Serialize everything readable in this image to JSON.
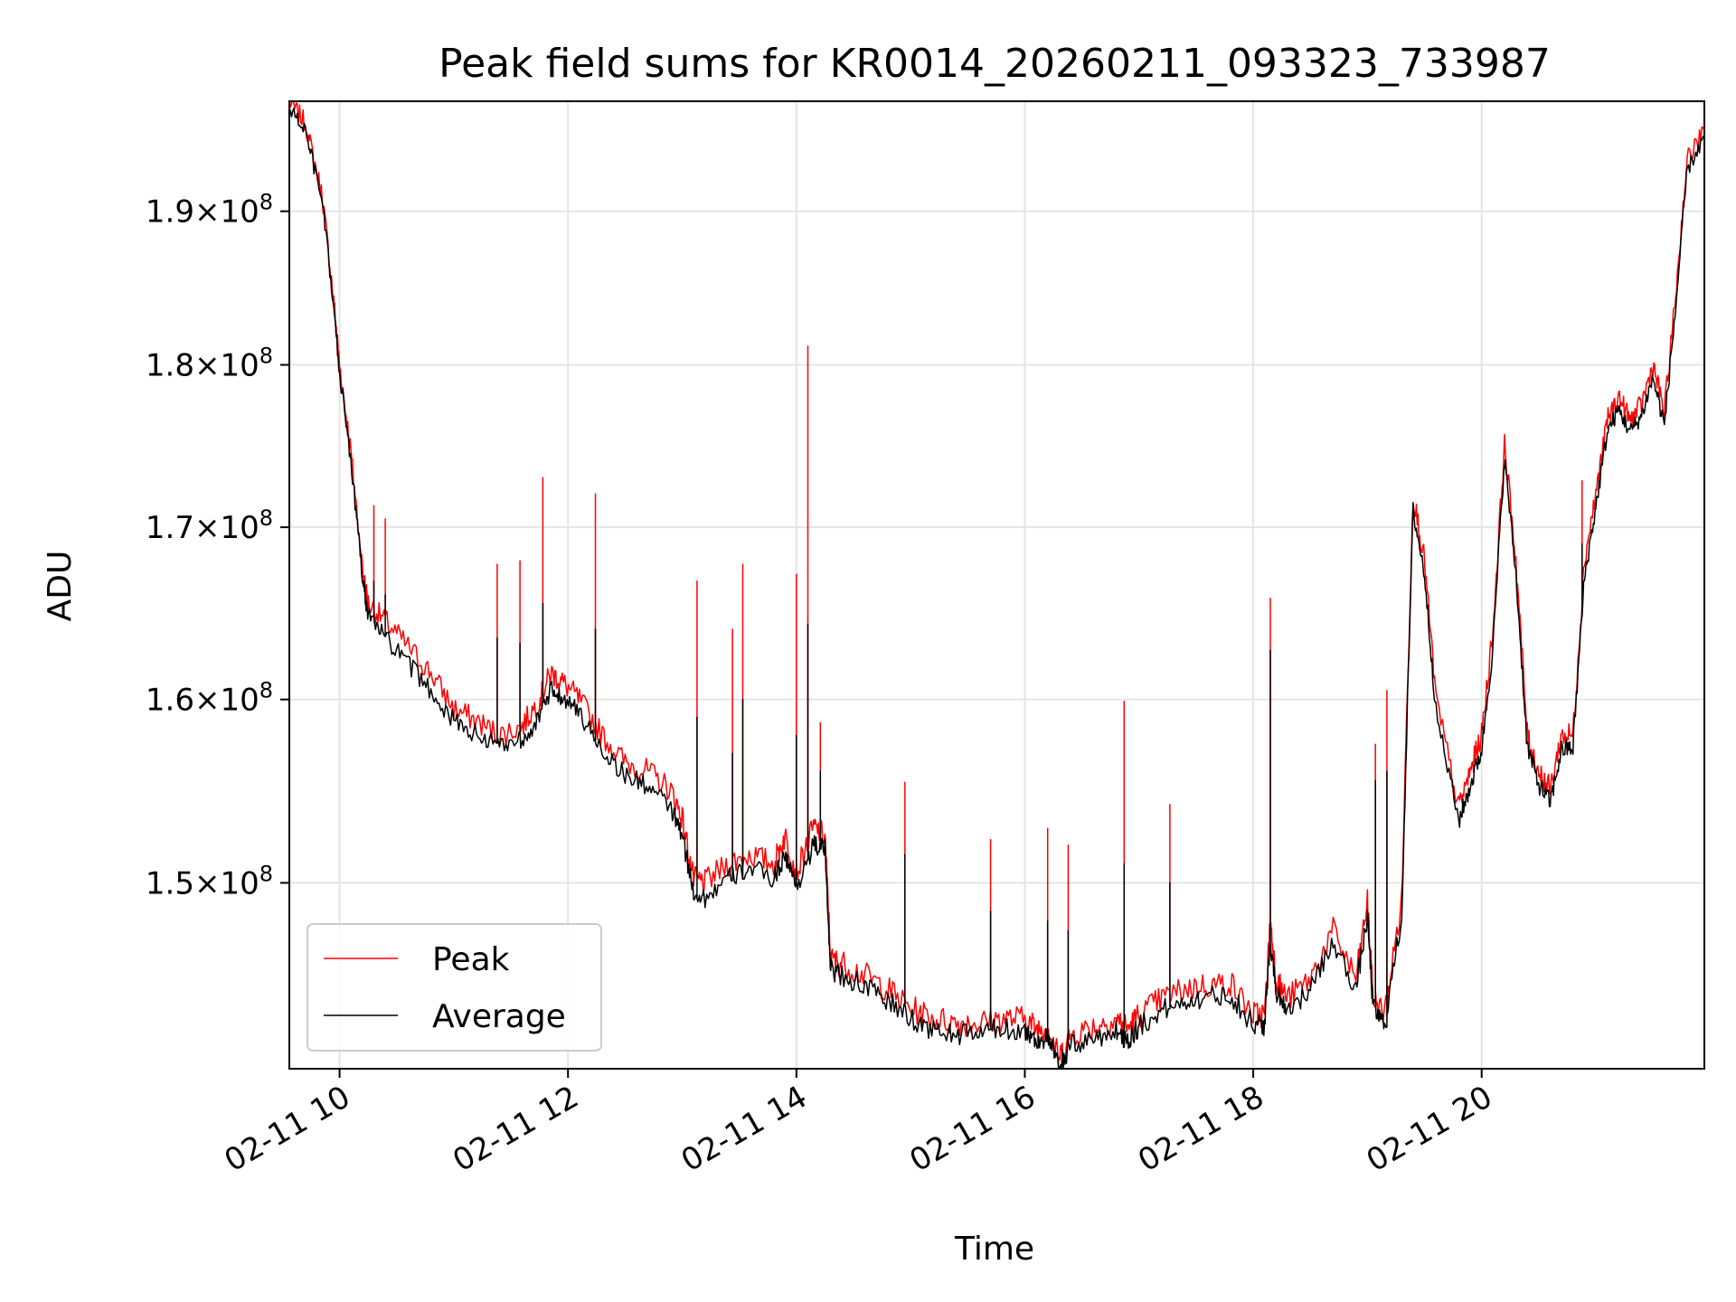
{
  "chart_data": {
    "type": "line",
    "title": "Peak field sums for KR0014_20260211_093323_733987",
    "xlabel": "Time",
    "ylabel": "ADU",
    "x_unit": "hours since 2026-02-11 00:00",
    "xlim": [
      9.56,
      21.95
    ],
    "ylim": [
      140.5,
      197.5
    ],
    "y_scale_note": "values in units of 1e6 ADU; log y-axis",
    "grid": true,
    "legend_position": "lower-left",
    "x_ticks": [
      {
        "value": 10,
        "label": "02-11 10"
      },
      {
        "value": 12,
        "label": "02-11 12"
      },
      {
        "value": 14,
        "label": "02-11 14"
      },
      {
        "value": 16,
        "label": "02-11 16"
      },
      {
        "value": 18,
        "label": "02-11 18"
      },
      {
        "value": 20,
        "label": "02-11 20"
      }
    ],
    "y_ticks": [
      {
        "value": 150,
        "mantissa": "1.5",
        "exponent": "8"
      },
      {
        "value": 160,
        "mantissa": "1.6",
        "exponent": "8"
      },
      {
        "value": 170,
        "mantissa": "1.7",
        "exponent": "8"
      },
      {
        "value": 180,
        "mantissa": "1.8",
        "exponent": "8"
      },
      {
        "value": 190,
        "mantissa": "1.9",
        "exponent": "8"
      }
    ],
    "tick_times_sign": "×",
    "tick_base": "10",
    "series": [
      {
        "name": "Peak",
        "color": "#ff0000",
        "x": [
          9.56,
          9.7,
          9.85,
          9.95,
          10.0,
          10.1,
          10.2,
          10.25,
          10.4,
          10.6,
          10.8,
          11.0,
          11.2,
          11.4,
          11.6,
          11.75,
          11.85,
          11.95,
          12.1,
          12.3,
          12.5,
          12.7,
          12.9,
          13.0,
          13.1,
          13.2,
          13.4,
          13.6,
          13.8,
          13.9,
          14.0,
          14.15,
          14.25,
          14.3,
          14.4,
          14.6,
          14.8,
          15.0,
          15.2,
          15.4,
          15.6,
          15.8,
          16.0,
          16.1,
          16.2,
          16.3,
          16.4,
          16.6,
          16.8,
          16.9,
          17.0,
          17.2,
          17.4,
          17.6,
          17.8,
          18.0,
          18.1,
          18.15,
          18.2,
          18.3,
          18.5,
          18.7,
          18.9,
          19.0,
          19.05,
          19.15,
          19.3,
          19.4,
          19.5,
          19.6,
          19.8,
          19.9,
          20.0,
          20.1,
          20.2,
          20.3,
          20.4,
          20.5,
          20.6,
          20.7,
          20.8,
          20.9,
          21.0,
          21.1,
          21.2,
          21.3,
          21.4,
          21.5,
          21.6,
          21.7,
          21.8,
          21.95
        ],
        "y": [
          197.5,
          196.0,
          191.0,
          184.0,
          180.0,
          174.5,
          167.5,
          165.5,
          164.5,
          163.0,
          161.5,
          159.5,
          158.8,
          158.0,
          158.5,
          160.0,
          161.5,
          161.0,
          160.0,
          158.0,
          156.5,
          156.0,
          155.0,
          153.5,
          150.2,
          150.0,
          151.0,
          151.5,
          151.0,
          152.5,
          150.5,
          153.0,
          152.5,
          146.0,
          145.8,
          145.2,
          144.5,
          143.5,
          143.0,
          142.8,
          142.8,
          143.0,
          143.0,
          142.5,
          142.6,
          141.0,
          142.2,
          142.6,
          143.0,
          142.5,
          143.2,
          144.0,
          144.5,
          144.7,
          144.8,
          143.2,
          143.2,
          148.0,
          145.0,
          144.0,
          145.0,
          147.5,
          145.0,
          149.0,
          144.0,
          143.2,
          149.0,
          172.0,
          168.0,
          160.0,
          154.0,
          156.0,
          158.0,
          164.0,
          175.0,
          168.0,
          158.0,
          156.0,
          155.0,
          158.0,
          158.0,
          168.0,
          172.0,
          176.5,
          178.0,
          176.5,
          177.5,
          180.0,
          177.0,
          184.5,
          193.5,
          195.5
        ]
      },
      {
        "name": "Average",
        "color": "#000000",
        "x": [
          9.56,
          9.7,
          9.85,
          9.95,
          10.0,
          10.1,
          10.2,
          10.25,
          10.4,
          10.6,
          10.8,
          11.0,
          11.2,
          11.4,
          11.6,
          11.75,
          11.85,
          11.95,
          12.1,
          12.3,
          12.5,
          12.7,
          12.9,
          13.0,
          13.1,
          13.2,
          13.4,
          13.6,
          13.8,
          13.9,
          14.0,
          14.15,
          14.25,
          14.3,
          14.4,
          14.6,
          14.8,
          15.0,
          15.2,
          15.4,
          15.6,
          15.8,
          16.0,
          16.1,
          16.2,
          16.3,
          16.4,
          16.6,
          16.8,
          16.9,
          17.0,
          17.2,
          17.4,
          17.6,
          17.8,
          18.0,
          18.1,
          18.15,
          18.2,
          18.3,
          18.5,
          18.7,
          18.9,
          19.0,
          19.05,
          19.15,
          19.3,
          19.4,
          19.5,
          19.6,
          19.8,
          19.9,
          20.0,
          20.1,
          20.2,
          20.3,
          20.4,
          20.5,
          20.6,
          20.7,
          20.8,
          20.9,
          21.0,
          21.1,
          21.2,
          21.3,
          21.4,
          21.5,
          21.6,
          21.7,
          21.8,
          21.95
        ],
        "y": [
          197.0,
          195.5,
          190.5,
          183.5,
          179.5,
          174.0,
          167.0,
          164.8,
          163.5,
          162.0,
          160.5,
          158.8,
          158.0,
          157.5,
          157.8,
          159.0,
          160.5,
          160.2,
          159.2,
          157.2,
          155.8,
          155.2,
          154.0,
          152.5,
          149.5,
          149.2,
          150.2,
          150.8,
          150.2,
          151.5,
          149.8,
          152.0,
          151.8,
          145.5,
          145.2,
          144.6,
          143.9,
          143.0,
          142.4,
          142.2,
          142.3,
          142.5,
          142.4,
          141.9,
          142.0,
          140.6,
          141.6,
          142.0,
          142.4,
          141.9,
          142.6,
          143.4,
          143.9,
          144.1,
          144.2,
          142.7,
          142.7,
          147.0,
          144.4,
          143.5,
          144.4,
          146.9,
          144.5,
          148.2,
          143.5,
          142.7,
          148.2,
          171.0,
          167.2,
          159.3,
          153.3,
          155.2,
          157.2,
          163.0,
          174.2,
          167.2,
          157.3,
          155.3,
          154.3,
          157.2,
          157.3,
          167.0,
          171.2,
          175.8,
          177.2,
          175.8,
          176.8,
          179.2,
          176.2,
          183.7,
          192.8,
          195.0
        ]
      }
    ],
    "spikes": [
      {
        "x": 9.74,
        "peak": 194.8,
        "avg": 194.2
      },
      {
        "x": 10.3,
        "peak": 171.3,
        "avg": 166.8
      },
      {
        "x": 10.4,
        "peak": 170.5,
        "avg": 166.0
      },
      {
        "x": 11.38,
        "peak": 167.8,
        "avg": 163.5
      },
      {
        "x": 11.58,
        "peak": 168.0,
        "avg": 163.2
      },
      {
        "x": 11.78,
        "peak": 173.0,
        "avg": 165.5
      },
      {
        "x": 12.24,
        "peak": 172.0,
        "avg": 164.0
      },
      {
        "x": 13.13,
        "peak": 166.8,
        "avg": 159.0
      },
      {
        "x": 13.44,
        "peak": 164.0,
        "avg": 157.0
      },
      {
        "x": 13.53,
        "peak": 167.8,
        "avg": 160.0
      },
      {
        "x": 14.0,
        "peak": 167.2,
        "avg": 158.0
      },
      {
        "x": 14.1,
        "peak": 181.2,
        "avg": 164.3
      },
      {
        "x": 14.21,
        "peak": 158.7,
        "avg": 156.0
      },
      {
        "x": 14.95,
        "peak": 155.4,
        "avg": 151.5
      },
      {
        "x": 15.7,
        "peak": 152.3,
        "avg": 148.5
      },
      {
        "x": 16.2,
        "peak": 152.9,
        "avg": 148.0
      },
      {
        "x": 16.38,
        "peak": 152.0,
        "avg": 147.5
      },
      {
        "x": 16.87,
        "peak": 159.9,
        "avg": 151.0
      },
      {
        "x": 17.27,
        "peak": 154.2,
        "avg": 150.0
      },
      {
        "x": 18.15,
        "peak": 165.8,
        "avg": 162.8
      },
      {
        "x": 19.07,
        "peak": 157.5,
        "avg": 155.5
      },
      {
        "x": 19.17,
        "peak": 160.5,
        "avg": 156.0
      },
      {
        "x": 20.88,
        "peak": 172.8,
        "avg": 169.0
      }
    ]
  }
}
